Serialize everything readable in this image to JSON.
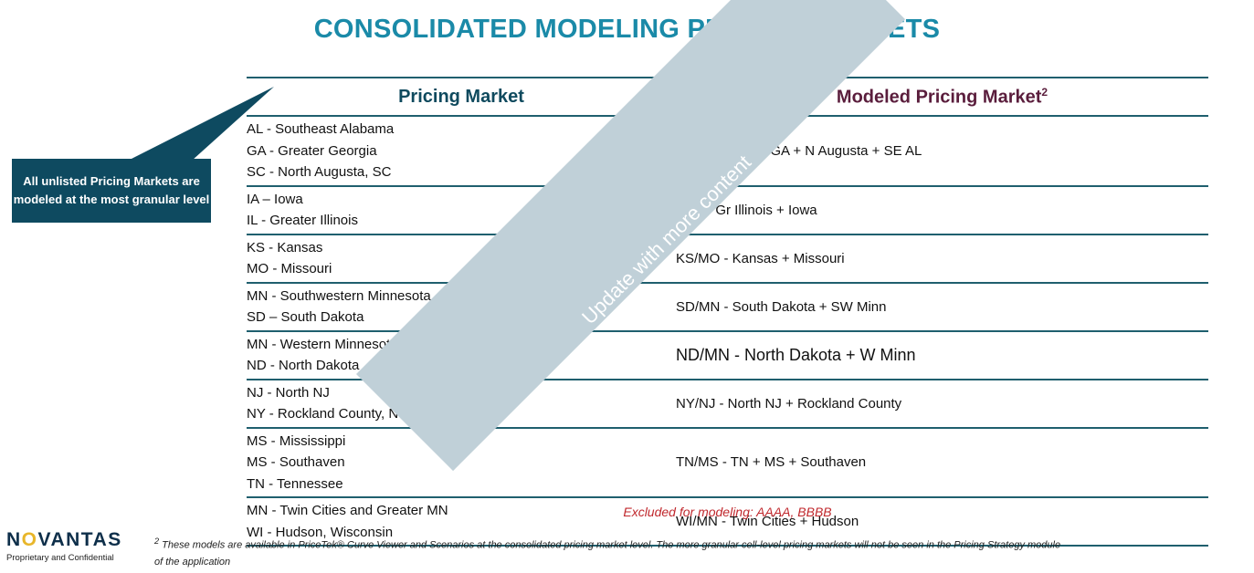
{
  "title": "CONSOLIDATED MODELING PRICING MARKETS",
  "table": {
    "header_left": "Pricing Market",
    "header_right": "Modeled Pricing Market",
    "header_right_sup": "2",
    "rows": [
      {
        "markets": [
          "AL - Southeast Alabama",
          "GA - Greater Georgia",
          "SC - North Augusta, SC"
        ],
        "modeled": "GA/AL/SC - Gr GA + N Augusta + SE AL"
      },
      {
        "markets": [
          "IA – Iowa",
          "IL - Greater Illinois"
        ],
        "modeled": "IL/IA - Gr Illinois + Iowa"
      },
      {
        "markets": [
          "KS - Kansas",
          "MO - Missouri"
        ],
        "modeled": "KS/MO - Kansas + Missouri"
      },
      {
        "markets": [
          "MN - Southwestern Minnesota",
          "SD – South Dakota"
        ],
        "modeled": "SD/MN - South Dakota + SW Minn"
      },
      {
        "markets": [
          "MN - Western Minnesota",
          "ND - North Dakota"
        ],
        "modeled": "ND/MN - North Dakota + W Minn"
      },
      {
        "markets": [
          "NJ - North NJ",
          "NY - Rockland County, NY"
        ],
        "modeled": "NY/NJ - North NJ + Rockland County"
      },
      {
        "markets": [
          "MS - Mississippi",
          "MS - Southaven",
          "TN - Tennessee"
        ],
        "modeled": "TN/MS - TN + MS + Southaven"
      },
      {
        "markets": [
          "MN - Twin Cities and Greater MN",
          "WI - Hudson, Wisconsin"
        ],
        "modeled": "WI/MN - Twin Cities + Hudson"
      }
    ]
  },
  "callout": "All unlisted Pricing Markets are modeled at the most granular level",
  "watermark": "Update with more content",
  "excluded": "Excluded for modeling: AAAA, BBBB",
  "footnote": {
    "sup": "2",
    "text": "These models are available in PriceTek® Curve Viewer and Scenarios at the consolidated pricing market level.  The more granular cell-level pricing markets will not be seen in the Pricing Strategy  module of the application"
  },
  "logo": {
    "text": "NOVANTAS",
    "subtitle": "Proprietary and Confidential"
  },
  "colors": {
    "title": "#1a8aa8",
    "header_left": "#0f4a5e",
    "header_right": "#5a1d3c",
    "callout_bg": "#0e4a60",
    "excluded": "#c0282d",
    "logo_accent": "#e8b62a"
  }
}
